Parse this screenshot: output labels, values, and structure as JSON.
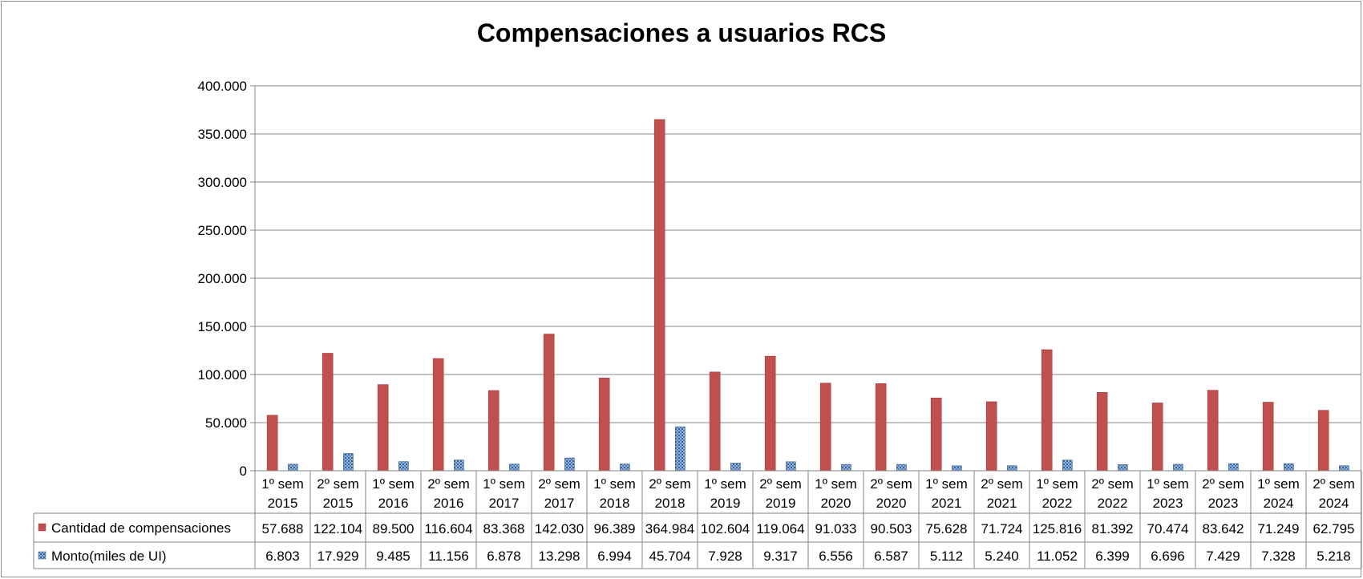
{
  "chart_data": {
    "type": "bar",
    "title": "Compensaciones a usuarios RCS",
    "categories": [
      [
        "1º sem",
        "2015"
      ],
      [
        "2º sem",
        "2015"
      ],
      [
        "1º sem",
        "2016"
      ],
      [
        "2º sem",
        "2016"
      ],
      [
        "1º sem",
        "2017"
      ],
      [
        "2º sem",
        "2017"
      ],
      [
        "1º sem",
        "2018"
      ],
      [
        "2º sem",
        "2018"
      ],
      [
        "1º sem",
        "2019"
      ],
      [
        "2º sem",
        "2019"
      ],
      [
        "1º sem",
        "2020"
      ],
      [
        "2º sem",
        "2020"
      ],
      [
        "1º sem",
        "2021"
      ],
      [
        "2º sem",
        "2021"
      ],
      [
        "1º sem",
        "2022"
      ],
      [
        "2º sem",
        "2022"
      ],
      [
        "1º sem",
        "2023"
      ],
      [
        "2º sem",
        "2023"
      ],
      [
        "1º sem",
        "2024"
      ],
      [
        "2º sem",
        "2024"
      ]
    ],
    "series": [
      {
        "name": "Cantidad de compensaciones",
        "color": "#c0504d",
        "values": [
          57688,
          122104,
          89500,
          116604,
          83368,
          142030,
          96389,
          364984,
          102604,
          119064,
          91033,
          90503,
          75628,
          71724,
          125816,
          81392,
          70474,
          83642,
          71249,
          62795
        ],
        "labels": [
          "57.688",
          "122.104",
          "89.500",
          "116.604",
          "83.368",
          "142.030",
          "96.389",
          "364.984",
          "102.604",
          "119.064",
          "91.033",
          "90.503",
          "75.628",
          "71.724",
          "125.816",
          "81.392",
          "70.474",
          "83.642",
          "71.249",
          "62.795"
        ]
      },
      {
        "name": "Monto(miles de UI)",
        "color": "#4f81bd",
        "values": [
          6803,
          17929,
          9485,
          11156,
          6878,
          13298,
          6994,
          45704,
          7928,
          9317,
          6556,
          6587,
          5112,
          5240,
          11052,
          6399,
          6696,
          7429,
          7328,
          5218
        ],
        "labels": [
          "6.803",
          "17.929",
          "9.485",
          "11.156",
          "6.878",
          "13.298",
          "6.994",
          "45.704",
          "7.928",
          "9.317",
          "6.556",
          "6.587",
          "5.112",
          "5.240",
          "11.052",
          "6.399",
          "6.696",
          "7.429",
          "7.328",
          "5.218"
        ]
      }
    ],
    "ylim": [
      0,
      400000
    ],
    "y_ticks": [
      {
        "value": 0,
        "label": "0"
      },
      {
        "value": 50000,
        "label": "50.000"
      },
      {
        "value": 100000,
        "label": "100.000"
      },
      {
        "value": 150000,
        "label": "150.000"
      },
      {
        "value": 200000,
        "label": "200.000"
      },
      {
        "value": 250000,
        "label": "250.000"
      },
      {
        "value": 300000,
        "label": "300.000"
      },
      {
        "value": 350000,
        "label": "350.000"
      },
      {
        "value": 400000,
        "label": "400.000"
      }
    ],
    "grid": true,
    "legend": "data-table-below",
    "xlabel": "",
    "ylabel": ""
  }
}
